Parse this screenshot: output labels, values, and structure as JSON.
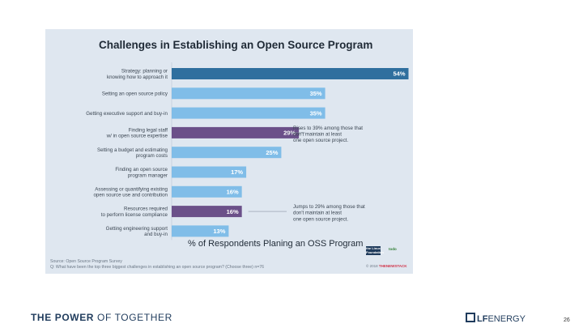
{
  "footer": {
    "left_bold": "THE POWER",
    "left_rest": "OF TOGETHER",
    "logo_lf": "LF",
    "logo_energy": "ENERGY",
    "page_number": "26"
  },
  "source": {
    "line1": "Source: Open Source Program Survey",
    "line2": "Q: What have been the top three biggest challenges in establishing an open source program? (Choose three) n=76"
  },
  "logos": {
    "lf": "the Linux Foundation",
    "todo": "todo",
    "credit_prefix": "© 2018 ",
    "credit_brand": "THENEWSTACK"
  },
  "colors": {
    "highlight_blue": "#2f6f9e",
    "default_blue": "#80bde8",
    "highlight_purple": "#6b5089",
    "panel_bg": "#dfe7f0"
  },
  "chart_data": {
    "type": "bar",
    "orientation": "horizontal",
    "title": "Challenges in Establishing an Open Source Program",
    "xlabel": "% of Respondents Planing an OSS Program",
    "ylabel": "",
    "xlim": [
      0,
      60
    ],
    "categories": [
      [
        "Strategy: planning or",
        "knowing how to approach it"
      ],
      [
        "Setting an open source policy"
      ],
      [
        "Getting executive support and buy-in"
      ],
      [
        "Finding legal staff",
        "w/ in open source expertise"
      ],
      [
        "Setting a budget and estimating",
        "program costs"
      ],
      [
        "Finding an open source",
        "program manager"
      ],
      [
        "Assessing or quantifying existing",
        "open source use and contribution"
      ],
      [
        "Resources required",
        "to perform license compliance"
      ],
      [
        "Getting engineering support",
        "and buy-in"
      ]
    ],
    "values": [
      54,
      35,
      35,
      29,
      25,
      17,
      16,
      16,
      13
    ],
    "value_labels": [
      "54%",
      "35%",
      "35%",
      "29%",
      "25%",
      "17%",
      "16%",
      "16%",
      "13%"
    ],
    "bar_styles": [
      "highlight_blue",
      "default",
      "default",
      "highlight_purple",
      "default",
      "default",
      "default",
      "highlight_purple",
      "default"
    ],
    "annotations": [
      {
        "bar_index": 3,
        "lines": [
          "Rises to 39% among those that",
          "don't maintain at least",
          "one open source project."
        ]
      },
      {
        "bar_index": 7,
        "lines": [
          "Jumps to 29% among those that",
          "don't maintain at least",
          "one open source project."
        ]
      }
    ]
  }
}
